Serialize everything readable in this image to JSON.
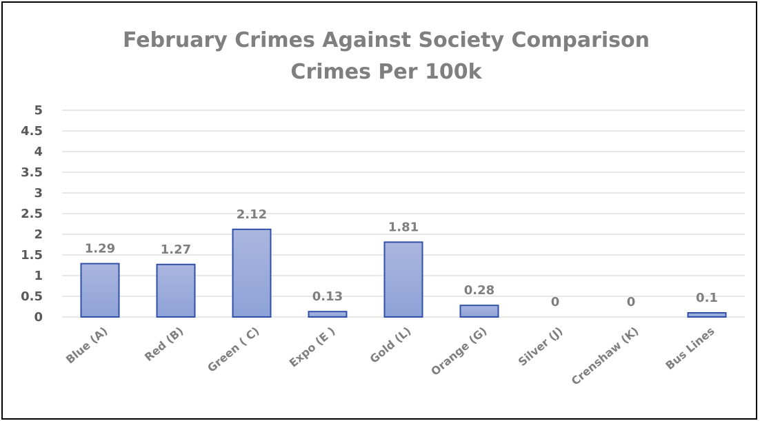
{
  "chart_data": {
    "type": "bar",
    "title": "February Crimes Against Society Comparison",
    "subtitle": "Crimes Per 100k",
    "categories": [
      "Blue (A)",
      "Red (B)",
      "Green ( C)",
      "Expo (E )",
      "Gold (L)",
      "Orange (G)",
      "Silver  (J)",
      "Crenshaw (K)",
      "Bus Lines"
    ],
    "values": [
      1.29,
      1.27,
      2.12,
      0.13,
      1.81,
      0.28,
      0,
      0,
      0.1
    ],
    "data_labels": [
      "1.29",
      "1.27",
      "2.12",
      "0.13",
      "1.81",
      "0.28",
      "0",
      "0",
      "0.1"
    ],
    "y_ticks": [
      "0",
      "0.5",
      "1",
      "1.5",
      "2",
      "2.5",
      "3",
      "3.5",
      "4",
      "4.5",
      "5"
    ],
    "ylim": [
      0,
      5
    ],
    "xlabel": "",
    "ylabel": "",
    "grid": true,
    "legend": "none",
    "colors": {
      "bar_fill_top": "#aab6de",
      "bar_fill_bottom": "#8ea2d8",
      "bar_stroke": "#2f4fa8",
      "grid": "#d9d9d9",
      "title": "#7f7f7f",
      "tick_text": "#595959",
      "label_text": "#7f7f7f"
    }
  }
}
